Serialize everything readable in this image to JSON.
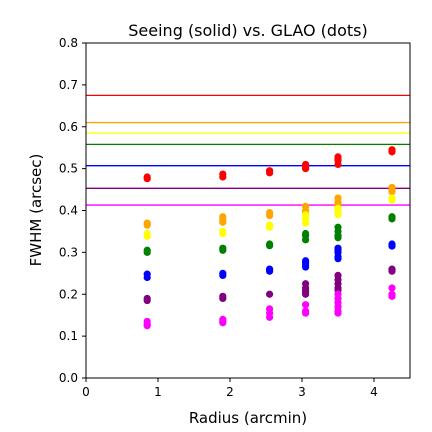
{
  "chart_data": {
    "type": "scatter",
    "title": "Seeing (solid) vs. GLAO (dots)",
    "xlabel": "Radius (arcmin)",
    "ylabel": "FWHM (arcsec)",
    "xlim": [
      0,
      4.5
    ],
    "ylim": [
      0,
      0.8
    ],
    "xticks": [
      0,
      1,
      2,
      3,
      4
    ],
    "yticks": [
      0.0,
      0.1,
      0.2,
      0.3,
      0.4,
      0.5,
      0.6,
      0.7,
      0.8
    ],
    "grid": false,
    "legend": "none",
    "seeing_lines": [
      {
        "color": "#ff0000",
        "value": 0.675
      },
      {
        "color": "#ffa500",
        "value": 0.61
      },
      {
        "color": "#ffff00",
        "value": 0.585
      },
      {
        "color": "#008000",
        "value": 0.558
      },
      {
        "color": "#0000ff",
        "value": 0.507
      },
      {
        "color": "#800080",
        "value": 0.453
      },
      {
        "color": "#ff00ff",
        "value": 0.413
      }
    ],
    "series": [
      {
        "color": "#ff0000",
        "points": [
          [
            0.85,
            0.48
          ],
          [
            0.85,
            0.476
          ],
          [
            1.9,
            0.487
          ],
          [
            1.9,
            0.48
          ],
          [
            2.55,
            0.495
          ],
          [
            2.55,
            0.49
          ],
          [
            3.05,
            0.51
          ],
          [
            3.05,
            0.5
          ],
          [
            3.05,
            0.505
          ],
          [
            3.5,
            0.528
          ],
          [
            3.5,
            0.52
          ],
          [
            3.5,
            0.51
          ],
          [
            3.5,
            0.523
          ],
          [
            4.25,
            0.545
          ],
          [
            4.25,
            0.54
          ]
        ]
      },
      {
        "color": "#ffa500",
        "points": [
          [
            0.85,
            0.37
          ],
          [
            0.85,
            0.365
          ],
          [
            1.9,
            0.385
          ],
          [
            1.9,
            0.378
          ],
          [
            1.9,
            0.372
          ],
          [
            2.55,
            0.395
          ],
          [
            2.55,
            0.388
          ],
          [
            3.05,
            0.41
          ],
          [
            3.05,
            0.4
          ],
          [
            3.05,
            0.395
          ],
          [
            3.5,
            0.43
          ],
          [
            3.5,
            0.42
          ],
          [
            3.5,
            0.41
          ],
          [
            3.5,
            0.415
          ],
          [
            4.25,
            0.455
          ],
          [
            4.25,
            0.45
          ],
          [
            4.25,
            0.445
          ]
        ]
      },
      {
        "color": "#ffff00",
        "points": [
          [
            0.85,
            0.345
          ],
          [
            0.85,
            0.338
          ],
          [
            1.9,
            0.35
          ],
          [
            1.9,
            0.345
          ],
          [
            2.55,
            0.36
          ],
          [
            2.55,
            0.365
          ],
          [
            3.05,
            0.38
          ],
          [
            3.05,
            0.37
          ],
          [
            3.05,
            0.39
          ],
          [
            3.5,
            0.395
          ],
          [
            3.5,
            0.39
          ],
          [
            3.5,
            0.4
          ],
          [
            3.5,
            0.405
          ],
          [
            4.25,
            0.43
          ],
          [
            4.25,
            0.425
          ]
        ]
      },
      {
        "color": "#008000",
        "points": [
          [
            0.85,
            0.305
          ],
          [
            0.85,
            0.3
          ],
          [
            1.9,
            0.31
          ],
          [
            1.9,
            0.305
          ],
          [
            2.55,
            0.32
          ],
          [
            2.55,
            0.316
          ],
          [
            3.05,
            0.34
          ],
          [
            3.05,
            0.33
          ],
          [
            3.05,
            0.345
          ],
          [
            3.5,
            0.36
          ],
          [
            3.5,
            0.35
          ],
          [
            3.5,
            0.335
          ],
          [
            3.5,
            0.34
          ],
          [
            4.25,
            0.385
          ],
          [
            4.25,
            0.38
          ]
        ]
      },
      {
        "color": "#0000ff",
        "points": [
          [
            0.85,
            0.248
          ],
          [
            0.85,
            0.24
          ],
          [
            1.9,
            0.25
          ],
          [
            1.9,
            0.245
          ],
          [
            2.55,
            0.26
          ],
          [
            2.55,
            0.255
          ],
          [
            3.05,
            0.275
          ],
          [
            3.05,
            0.265
          ],
          [
            3.05,
            0.28
          ],
          [
            3.05,
            0.27
          ],
          [
            3.5,
            0.3
          ],
          [
            3.5,
            0.29
          ],
          [
            3.5,
            0.285
          ],
          [
            3.5,
            0.31
          ],
          [
            3.5,
            0.305
          ],
          [
            4.25,
            0.32
          ],
          [
            4.25,
            0.315
          ]
        ]
      },
      {
        "color": "#800080",
        "points": [
          [
            0.85,
            0.19
          ],
          [
            0.85,
            0.185
          ],
          [
            1.9,
            0.195
          ],
          [
            1.9,
            0.19
          ],
          [
            2.55,
            0.2
          ],
          [
            3.05,
            0.225
          ],
          [
            3.05,
            0.215
          ],
          [
            3.05,
            0.21
          ],
          [
            3.05,
            0.2
          ],
          [
            3.05,
            0.205
          ],
          [
            3.5,
            0.245
          ],
          [
            3.5,
            0.235
          ],
          [
            3.5,
            0.225
          ],
          [
            3.5,
            0.215
          ],
          [
            3.5,
            0.21
          ],
          [
            4.25,
            0.26
          ],
          [
            4.25,
            0.255
          ]
        ]
      },
      {
        "color": "#ff00ff",
        "points": [
          [
            0.85,
            0.135
          ],
          [
            0.85,
            0.128
          ],
          [
            0.85,
            0.125
          ],
          [
            1.9,
            0.14
          ],
          [
            1.9,
            0.135
          ],
          [
            1.9,
            0.132
          ],
          [
            2.55,
            0.165
          ],
          [
            2.55,
            0.155
          ],
          [
            2.55,
            0.145
          ],
          [
            3.05,
            0.175
          ],
          [
            3.05,
            0.16
          ],
          [
            3.05,
            0.155
          ],
          [
            3.5,
            0.2
          ],
          [
            3.5,
            0.19
          ],
          [
            3.5,
            0.18
          ],
          [
            3.5,
            0.17
          ],
          [
            3.5,
            0.16
          ],
          [
            3.5,
            0.155
          ],
          [
            4.25,
            0.215
          ],
          [
            4.25,
            0.2
          ],
          [
            4.25,
            0.195
          ]
        ]
      }
    ]
  }
}
